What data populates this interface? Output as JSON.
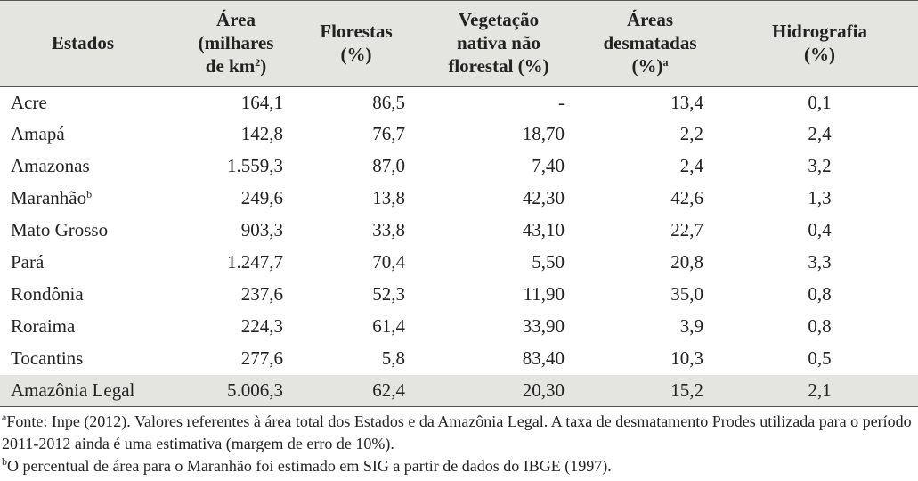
{
  "table": {
    "header": [
      [
        [
          "Estados"
        ]
      ],
      [
        [
          "Área"
        ],
        [
          "(milhares"
        ],
        [
          "de km",
          {
            "sup": "2"
          },
          ")"
        ]
      ],
      [
        [
          "Florestas"
        ],
        [
          "(%)"
        ]
      ],
      [
        [
          "Vegetação"
        ],
        [
          "nativa não"
        ],
        [
          "florestal (%)"
        ]
      ],
      [
        [
          "Áreas"
        ],
        [
          "desmatadas"
        ],
        [
          "(%)",
          {
            "sup": "a"
          }
        ]
      ],
      [
        [
          "Hidrografia"
        ],
        [
          "(%)"
        ]
      ]
    ],
    "rows": [
      {
        "state": "Acre",
        "values": [
          "164,1",
          "86,5",
          "-",
          "13,4",
          "0,1"
        ]
      },
      {
        "state": "Amapá",
        "values": [
          "142,8",
          "76,7",
          "18,70",
          "2,2",
          "2,4"
        ]
      },
      {
        "state": "Amazonas",
        "values": [
          "1.559,3",
          "87,0",
          "7,40",
          "2,4",
          "3,2"
        ]
      },
      {
        "state": "Maranhão",
        "note": "b",
        "values": [
          "249,6",
          "13,8",
          "42,30",
          "42,6",
          "1,3"
        ]
      },
      {
        "state": "Mato Grosso",
        "values": [
          "903,3",
          "33,8",
          "43,10",
          "22,7",
          "0,4"
        ]
      },
      {
        "state": "Pará",
        "values": [
          "1.247,7",
          "70,4",
          "5,50",
          "20,8",
          "3,3"
        ]
      },
      {
        "state": "Rondônia",
        "values": [
          "237,6",
          "52,3",
          "11,90",
          "35,0",
          "0,8"
        ]
      },
      {
        "state": "Roraima",
        "values": [
          "224,3",
          "61,4",
          "33,90",
          "3,9",
          "0,8"
        ]
      },
      {
        "state": "Tocantins",
        "values": [
          "277,6",
          "5,8",
          "83,40",
          "10,3",
          "0,5"
        ]
      }
    ],
    "total": {
      "state": "Amazônia Legal",
      "values": [
        "5.006,3",
        "62,4",
        "20,30",
        "15,2",
        "2,1"
      ]
    },
    "footnotes": [
      {
        "mark": "a",
        "text": "Fonte: Inpe (2012). Valores referentes à área total dos Estados e da Amazônia Legal. A taxa de desmatamento Prodes utilizada para o período 2011-2012 ainda é uma estimativa (margem de erro de 10%)."
      },
      {
        "mark": "b",
        "text": "O percentual de área para o Maranhão foi estimado em SIG a partir de dados do IBGE (1997)."
      }
    ]
  }
}
